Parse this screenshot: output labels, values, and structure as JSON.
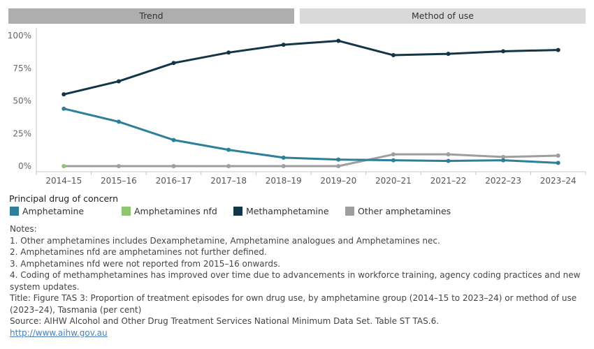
{
  "tabs": {
    "trend": "Trend",
    "method": "Method of use"
  },
  "chart_data": {
    "type": "line",
    "categories": [
      "2014–15",
      "2015–16",
      "2016–17",
      "2017–18",
      "2018–19",
      "2019–20",
      "2020–21",
      "2021–22",
      "2022–23",
      "2023–24"
    ],
    "y_ticks": [
      "100%",
      "75%",
      "50%",
      "25%",
      "0%"
    ],
    "ylim": [
      0,
      100
    ],
    "series": [
      {
        "name": "Amphetamine",
        "color": "#2e7f99",
        "values": [
          44,
          34,
          20,
          12.5,
          6.5,
          5,
          4.5,
          4,
          4.5,
          2.5
        ]
      },
      {
        "name": "Amphetamines nfd",
        "color": "#8fc56e",
        "values": [
          0,
          null,
          null,
          null,
          null,
          null,
          null,
          null,
          null,
          null
        ]
      },
      {
        "name": "Methamphetamine",
        "color": "#133647",
        "values": [
          55,
          65,
          79,
          87,
          93,
          96,
          85,
          86,
          88,
          89
        ]
      },
      {
        "name": "Other amphetamines",
        "color": "#9e9e9e",
        "values": [
          0,
          0,
          0,
          0,
          0,
          0,
          9,
          9,
          7,
          8
        ]
      }
    ]
  },
  "legend": {
    "title": "Principal drug of concern",
    "items": [
      "Amphetamine",
      "Amphetamines nfd",
      "Methamphetamine",
      "Other amphetamines"
    ]
  },
  "notes": {
    "heading": "Notes:",
    "n1": "1. Other amphetamines includes Dexamphetamine, Amphetamine analogues and Amphetamines nec.",
    "n2": "2. Amphetamines nfd are amphetamines not further defined.",
    "n3": "3. Amphetamines nfd were not reported from 2015–16 onwards.",
    "n4": "4. Coding of methamphetamines has improved over time due to advancements in workforce training, agency coding practices and new system updates.",
    "title": "Title: Figure TAS 3: Proportion of treatment episodes for own drug use, by amphetamine group (2014–15 to 2023–24) or method of use (2023–24), Tasmania (per cent)",
    "source": "Source: AIHW Alcohol and Other Drug Treatment Services National Minimum Data Set. Table ST TAS.6.",
    "link": "http://www.aihw.gov.au"
  }
}
